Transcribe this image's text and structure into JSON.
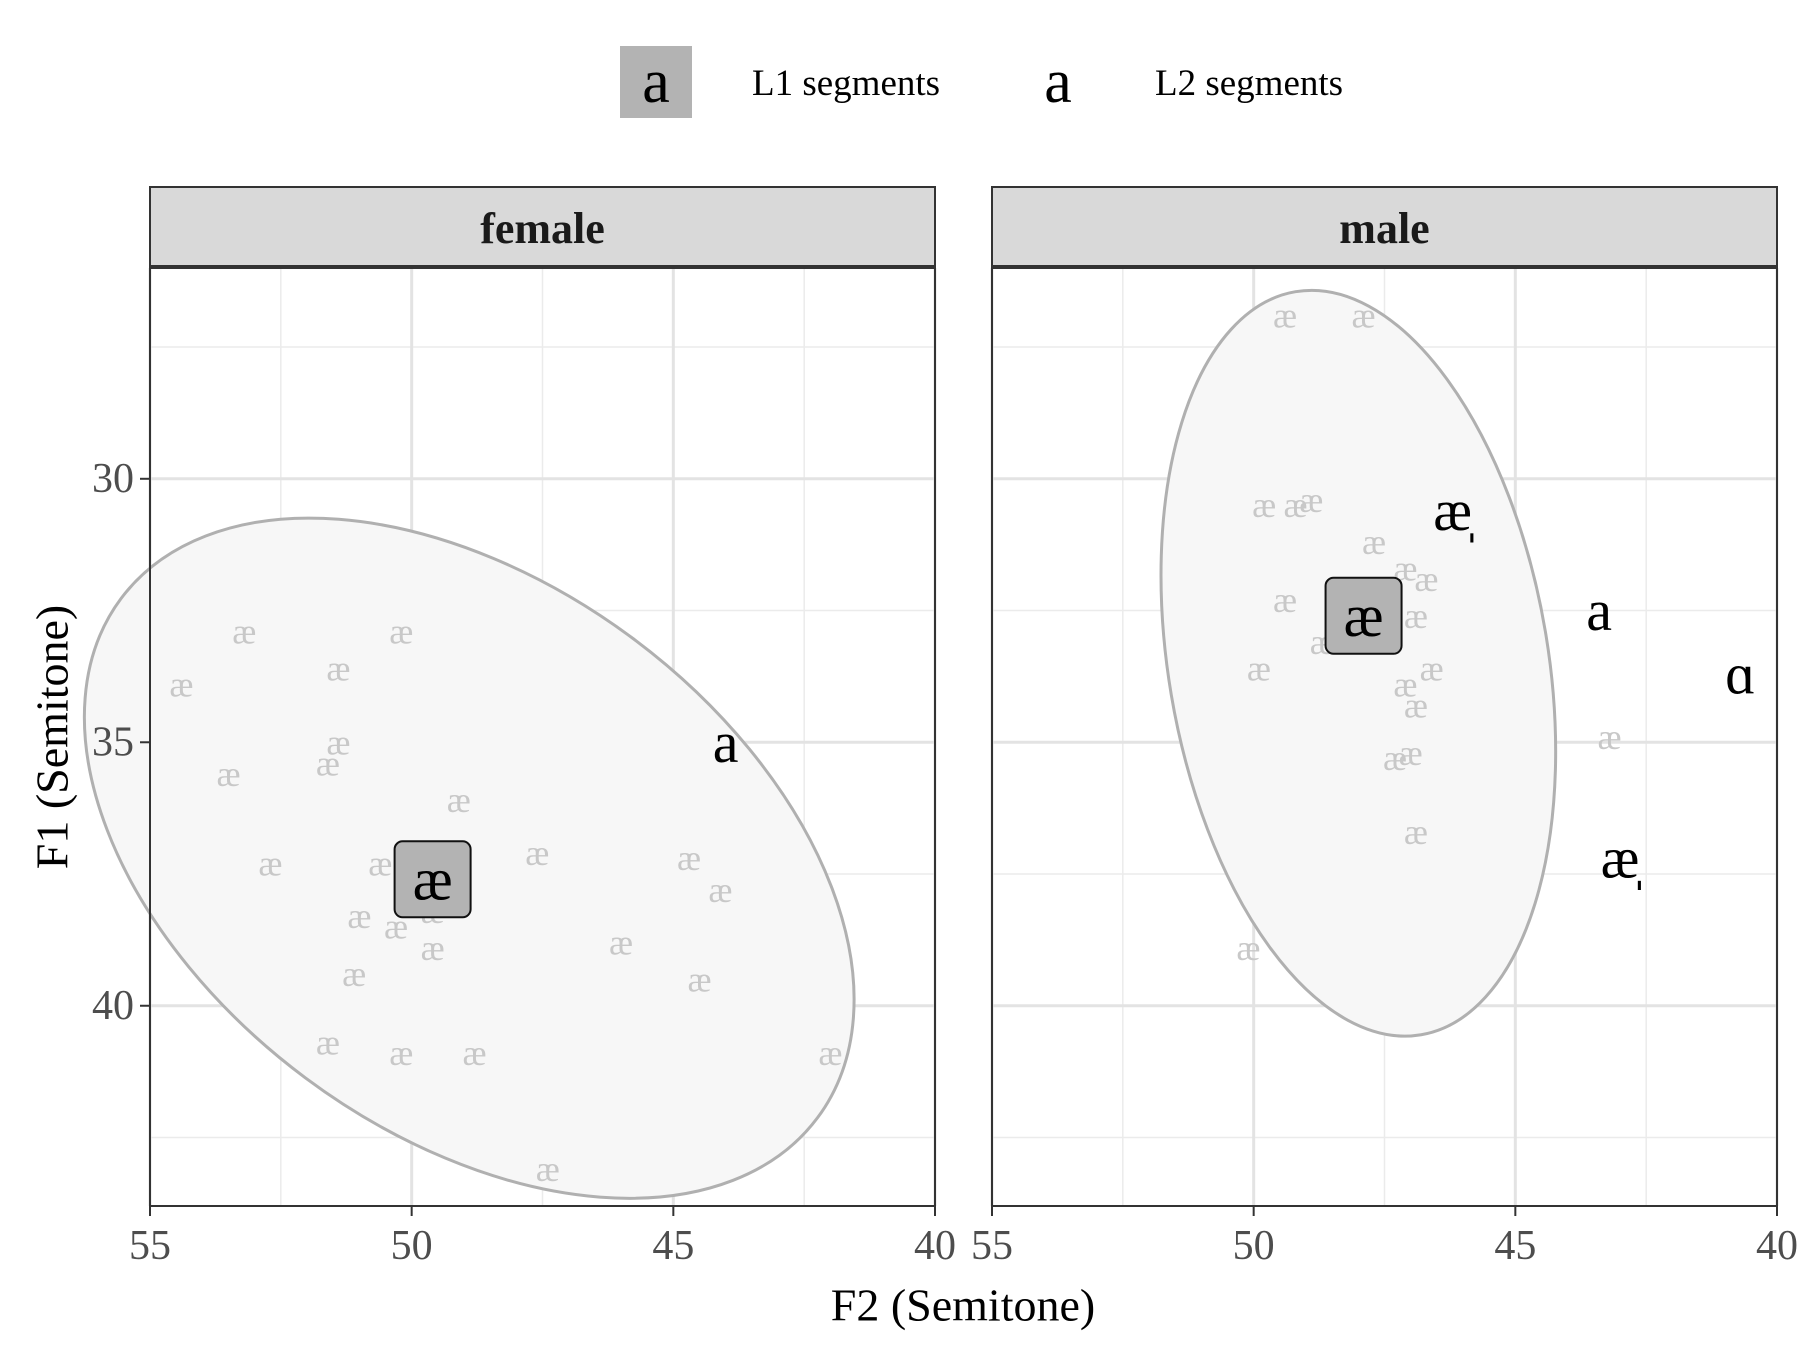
{
  "legend": {
    "l1_symbol": "a",
    "l1_label": "L1 segments",
    "l2_symbol": "a",
    "l2_label": "L2 segments"
  },
  "chart_data": {
    "type": "scatter",
    "xlabel": "F2 (Semitone)",
    "ylabel": "F1 (Semitone)",
    "xlim": [
      55,
      40
    ],
    "ylim": [
      43.8,
      26
    ],
    "x_reversed": true,
    "y_reversed": true,
    "xticks": [
      55,
      50,
      45,
      40
    ],
    "yticks": [
      30,
      35,
      40
    ],
    "grid": true,
    "legend_position": "top",
    "colors": {
      "l1_fill": "#b3b3b3",
      "token": "#c8c8c8",
      "ellipse_fill": "#f7f7f7",
      "ellipse_stroke": "#b0b0b0",
      "strip": "#d9d9d9"
    },
    "panels": [
      {
        "name": "female",
        "tokens": {
          "label": "æ",
          "points": [
            [
              54.4,
              33.9
            ],
            [
              53.2,
              32.9
            ],
            [
              51.4,
              33.6
            ],
            [
              50.2,
              32.9
            ],
            [
              53.5,
              35.6
            ],
            [
              51.6,
              35.4
            ],
            [
              51.4,
              35.0
            ],
            [
              52.7,
              37.3
            ],
            [
              50.6,
              37.3
            ],
            [
              49.8,
              37.5
            ],
            [
              51.0,
              38.3
            ],
            [
              50.3,
              38.5
            ],
            [
              49.6,
              38.2
            ],
            [
              49.6,
              38.9
            ],
            [
              51.1,
              39.4
            ],
            [
              49.1,
              36.1
            ],
            [
              47.6,
              37.1
            ],
            [
              46.0,
              38.8
            ],
            [
              44.7,
              37.2
            ],
            [
              44.1,
              37.8
            ],
            [
              44.5,
              39.5
            ],
            [
              51.6,
              40.7
            ],
            [
              50.2,
              40.9
            ],
            [
              48.8,
              40.9
            ],
            [
              42.0,
              40.9
            ],
            [
              47.4,
              43.1
            ]
          ]
        },
        "ellipse": {
          "cx": 48.9,
          "cy": 37.2,
          "rx": 8.3,
          "ry": 5.2,
          "rotation_deg": 36.7
        },
        "l1_mean": {
          "label": "æ",
          "x": 49.6,
          "y": 37.6
        },
        "l2_segments": [
          {
            "label": "a",
            "x": 44.0,
            "y": 35.0
          }
        ]
      },
      {
        "name": "male",
        "tokens": {
          "label": "æ",
          "points": [
            [
              49.4,
              26.9
            ],
            [
              47.9,
              26.9
            ],
            [
              49.8,
              30.5
            ],
            [
              49.2,
              30.5
            ],
            [
              48.9,
              30.4
            ],
            [
              47.7,
              31.2
            ],
            [
              47.1,
              31.7
            ],
            [
              46.7,
              31.9
            ],
            [
              49.4,
              32.3
            ],
            [
              46.9,
              32.6
            ],
            [
              48.7,
              33.1
            ],
            [
              49.9,
              33.6
            ],
            [
              46.6,
              33.6
            ],
            [
              47.8,
              32.3
            ],
            [
              47.1,
              33.9
            ],
            [
              46.9,
              34.3
            ],
            [
              47.0,
              35.2
            ],
            [
              47.3,
              35.3
            ],
            [
              46.9,
              36.7
            ],
            [
              43.2,
              34.9
            ],
            [
              50.1,
              38.9
            ]
          ]
        },
        "ellipse": {
          "cx": 48.0,
          "cy": 33.5,
          "rx": 7.2,
          "ry": 3.6,
          "rotation_deg": 80.4
        },
        "l1_mean": {
          "label": "æ",
          "x": 47.9,
          "y": 32.6
        },
        "l2_segments": [
          {
            "label": "æ̩",
            "x": 46.2,
            "y": 30.6
          },
          {
            "label": "a",
            "x": 43.4,
            "y": 32.5
          },
          {
            "label": "ɑ",
            "x": 40.7,
            "y": 33.7
          },
          {
            "label": "æ̩",
            "x": 43.0,
            "y": 37.2
          }
        ]
      }
    ]
  }
}
